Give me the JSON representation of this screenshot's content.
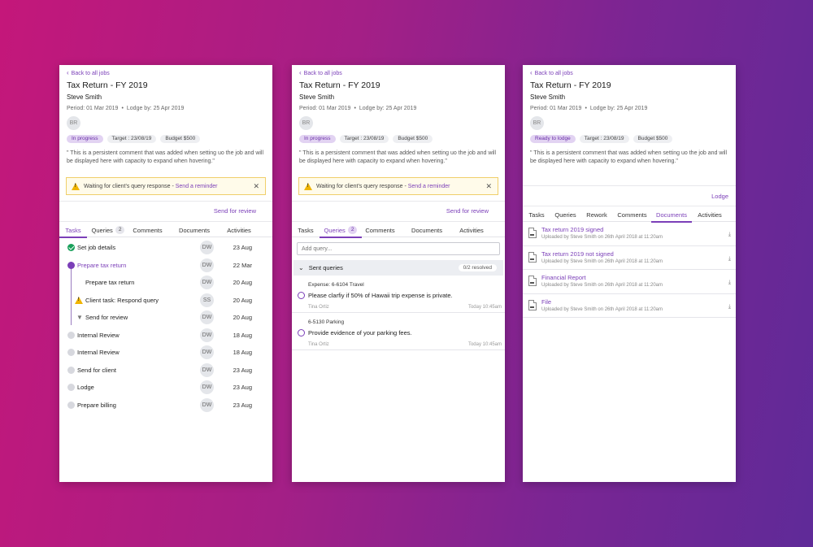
{
  "job": {
    "back_label": "Back to all jobs",
    "title": "Tax Return - FY 2019",
    "client": "Steve Smith",
    "period": "Period: 01 Mar 2019",
    "lodge_by": "Lodge by: 25 Apr 2019",
    "avatar_initials": "BR",
    "target": "Target : 23/08/19",
    "budget": "Budget $500",
    "comment": "\" This is a persistent comment that was added when setting uo the job and will be displayed here with capacity to expand when hovering.\""
  },
  "alert": {
    "text": "Waiting for client's query response - ",
    "link": "Send a reminder"
  },
  "panels": {
    "tasks_view": {
      "status": "In progress",
      "action": "Send for review",
      "tabs": [
        "Tasks",
        "Queries",
        "Comments",
        "Documents",
        "Activities"
      ],
      "queries_count": "2",
      "tasks": [
        {
          "name": "Set job details",
          "initials": "DW",
          "date": "23 Aug"
        },
        {
          "name": "Prepare tax return",
          "initials": "DW",
          "date": "22 Mar"
        },
        {
          "name": "Prepare tax return",
          "initials": "DW",
          "date": "20 Aug"
        },
        {
          "name": "Client task: Respond query",
          "initials": "SS",
          "date": "20 Aug"
        },
        {
          "name": "Send for review",
          "initials": "DW",
          "date": "20 Aug"
        },
        {
          "name": "Internal Review",
          "initials": "DW",
          "date": "18 Aug"
        },
        {
          "name": "Internal Review",
          "initials": "DW",
          "date": "18 Aug"
        },
        {
          "name": "Send for client",
          "initials": "DW",
          "date": "23 Aug"
        },
        {
          "name": "Lodge",
          "initials": "DW",
          "date": "23 Aug"
        },
        {
          "name": "Prepare billing",
          "initials": "DW",
          "date": "23 Aug"
        }
      ]
    },
    "queries_view": {
      "status": "In progress",
      "action": "Send for review",
      "tabs": [
        "Tasks",
        "Queries",
        "Comments",
        "Documents",
        "Activities"
      ],
      "queries_count": "2",
      "add_placeholder": "Add query...",
      "sent_label": "Sent queries",
      "resolved": "0/2 resolved",
      "queries": [
        {
          "category": "Expense: 6-6104 Travel",
          "text": "Please clarfiy if 50% of Hawaii trip expense is private.",
          "who": "Tina Ortiz",
          "when": "Today 10:45am"
        },
        {
          "category": "6-5130 Parking",
          "text": "Provide evidence of your parking fees.",
          "who": "Tina Ortiz",
          "when": "Today 10:45am"
        }
      ]
    },
    "documents_view": {
      "status": "Ready to lodge",
      "action": "Lodge",
      "tabs": [
        "Tasks",
        "Queries",
        "Rework",
        "Comments",
        "Documents",
        "Activities"
      ],
      "documents": [
        {
          "name": "Tax return 2019 signed",
          "meta": "Uploaded by Steve Smith on 26th April 2018 at 11:20am"
        },
        {
          "name": "Tax return 2019 not signed",
          "meta": "Uploaded by Steve Smith on 26th April 2018 at 11:20am"
        },
        {
          "name": "Financial Report",
          "meta": "Uploaded by Steve Smith on 26th April 2018 at 11:20am"
        },
        {
          "name": "File",
          "meta": "Uploaded by Steve Smith on 26th April 2018 at 11:20am"
        }
      ]
    }
  },
  "icons": {
    "back": "chevron-left-icon",
    "warning": "warning-icon",
    "close": "close-icon",
    "download": "download-icon",
    "file": "file-icon"
  },
  "colors": {
    "accent": "#7b3fb8",
    "done": "#18a05a",
    "warning": "#f0b400"
  }
}
